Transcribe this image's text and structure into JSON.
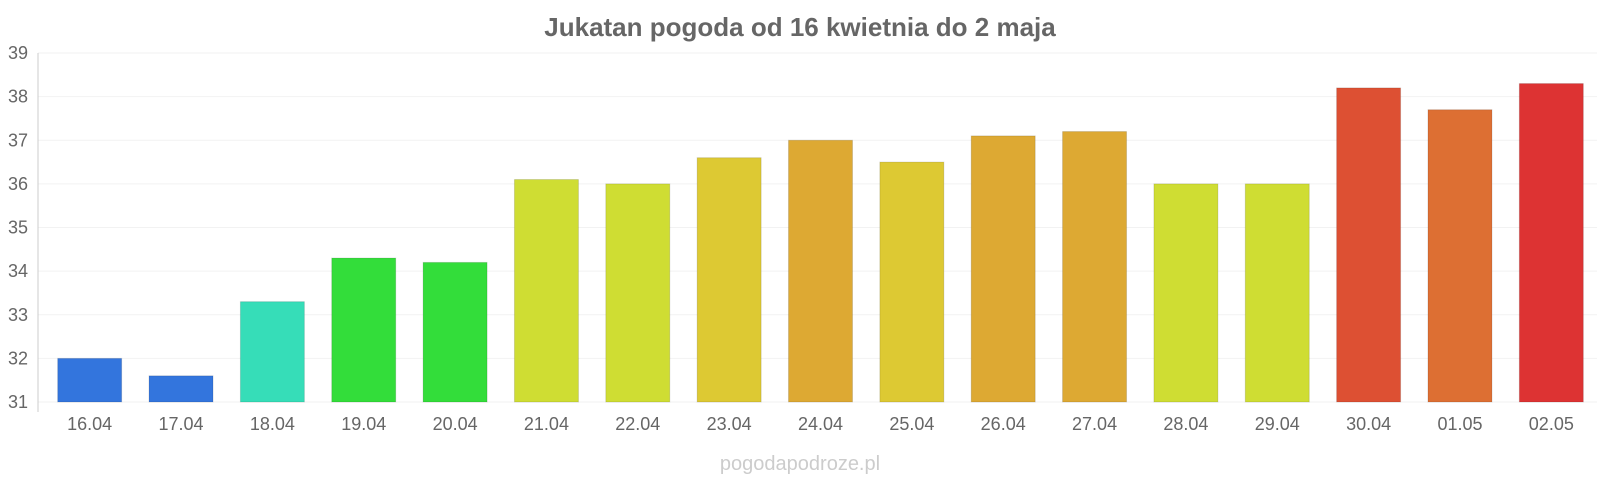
{
  "chart_data": {
    "type": "bar",
    "title": "Jukatan pogoda od 16 kwietnia do 2 maja",
    "xlabel": "",
    "ylabel": "",
    "categories": [
      "16.04",
      "17.04",
      "18.04",
      "19.04",
      "20.04",
      "21.04",
      "22.04",
      "23.04",
      "24.04",
      "25.04",
      "26.04",
      "27.04",
      "28.04",
      "29.04",
      "30.04",
      "01.05",
      "02.05"
    ],
    "values": [
      32.0,
      31.6,
      33.3,
      34.3,
      34.2,
      36.1,
      36.0,
      36.6,
      37.0,
      36.5,
      37.1,
      37.2,
      36.0,
      36.0,
      38.2,
      37.7,
      38.3
    ],
    "colors": [
      "#3375dd",
      "#3375dd",
      "#36ddb8",
      "#33dd3a",
      "#33dd3a",
      "#cfdd33",
      "#cfdd33",
      "#ddc933",
      "#dda933",
      "#ddc933",
      "#dda933",
      "#dda933",
      "#cfdd33",
      "#cfdd33",
      "#dd5033",
      "#dd6f33",
      "#dd3333"
    ],
    "yticks": [
      "31",
      "32",
      "33",
      "34",
      "35",
      "36",
      "37",
      "38",
      "39"
    ],
    "ylim": [
      31,
      39
    ],
    "grid": true,
    "legend": "none"
  },
  "watermark": "pogodapodroze.pl"
}
